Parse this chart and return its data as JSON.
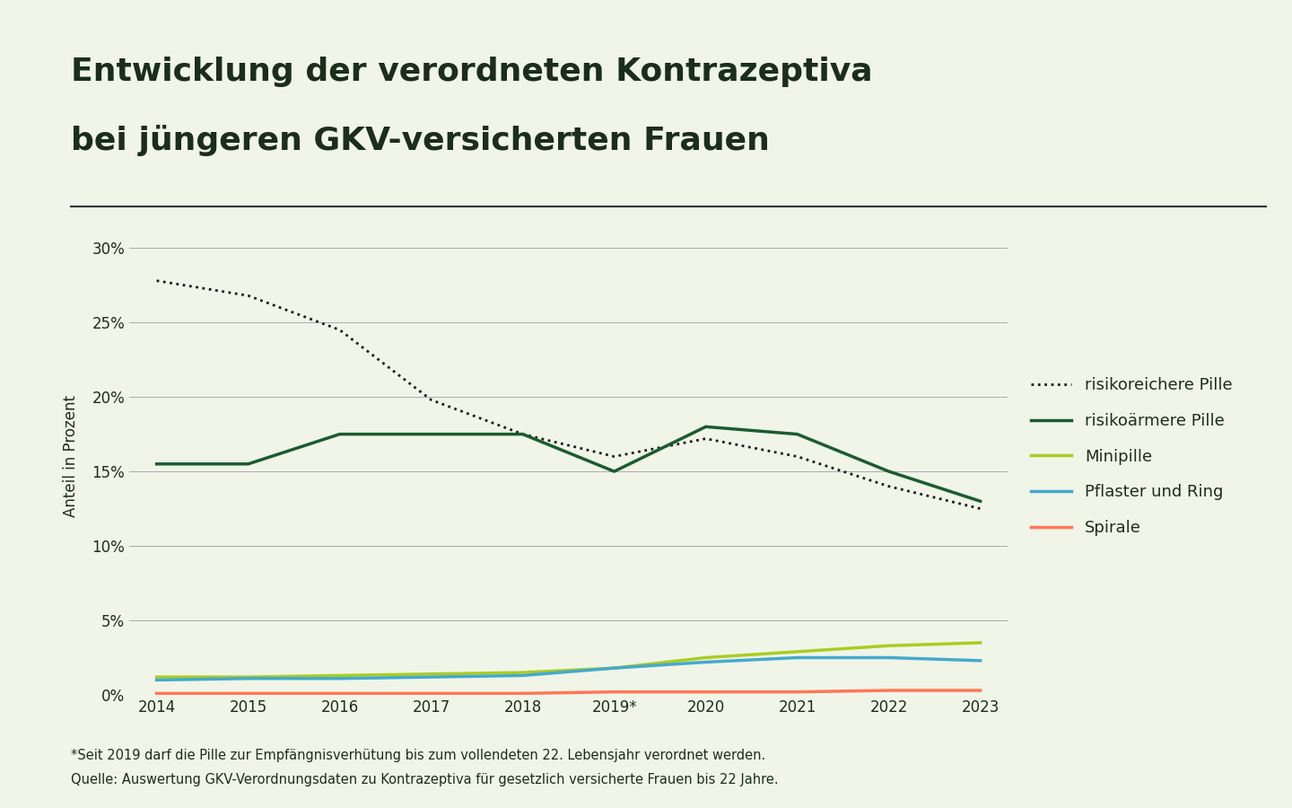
{
  "title_line1": "Entwicklung der verordneten Kontrazeptiva",
  "title_line2": "bei jüngeren GKV-versicherten Frauen",
  "ylabel": "Anteil in Prozent",
  "background_color": "#f0f5e8",
  "title_color": "#1a2e1a",
  "years": [
    2014,
    2015,
    2016,
    2017,
    2018,
    2019,
    2020,
    2021,
    2022,
    2023
  ],
  "year_labels": [
    "2014",
    "2015",
    "2016",
    "2017",
    "2018",
    "2019*",
    "2020",
    "2021",
    "2022",
    "2023"
  ],
  "risikoreichere_pille": [
    27.8,
    26.8,
    24.5,
    19.8,
    17.5,
    16.0,
    17.2,
    16.0,
    14.0,
    12.5
  ],
  "risikoaermere_pille": [
    15.5,
    15.5,
    17.5,
    17.5,
    17.5,
    15.0,
    18.0,
    17.5,
    15.0,
    13.0
  ],
  "minipille": [
    1.2,
    1.2,
    1.3,
    1.4,
    1.5,
    1.8,
    2.5,
    2.9,
    3.3,
    3.5
  ],
  "pflaster_ring": [
    1.0,
    1.1,
    1.1,
    1.2,
    1.3,
    1.8,
    2.2,
    2.5,
    2.5,
    2.3
  ],
  "spirale": [
    0.1,
    0.1,
    0.1,
    0.1,
    0.1,
    0.2,
    0.2,
    0.2,
    0.3,
    0.3
  ],
  "color_risikoreich": "#1a1a1a",
  "color_risikoarm": "#1a5c2e",
  "color_minipille": "#aacc22",
  "color_pflaster": "#44aacc",
  "color_spirale": "#ff7755",
  "footnote1": "*Seit 2019 darf die Pille zur Empfängnisverhütung bis zum vollendeten 22. Lebensjahr verordnet werden.",
  "footnote2": "Quelle: Auswertung GKV-Verordnungsdaten zu Kontrazeptiva für gesetzlich versicherte Frauen bis 22 Jahre.",
  "ylim": [
    0,
    32
  ],
  "yticks": [
    0,
    5,
    10,
    15,
    20,
    25,
    30
  ],
  "ytick_labels": [
    "0%",
    "5%",
    "10%",
    "15%",
    "20%",
    "25%",
    "30%"
  ],
  "grid_color": "#aaaaaa",
  "separator_color": "#333333",
  "title_fontsize": 26,
  "label_fontsize": 12,
  "legend_fontsize": 13,
  "tick_fontsize": 12,
  "footnote_fontsize": 10.5
}
